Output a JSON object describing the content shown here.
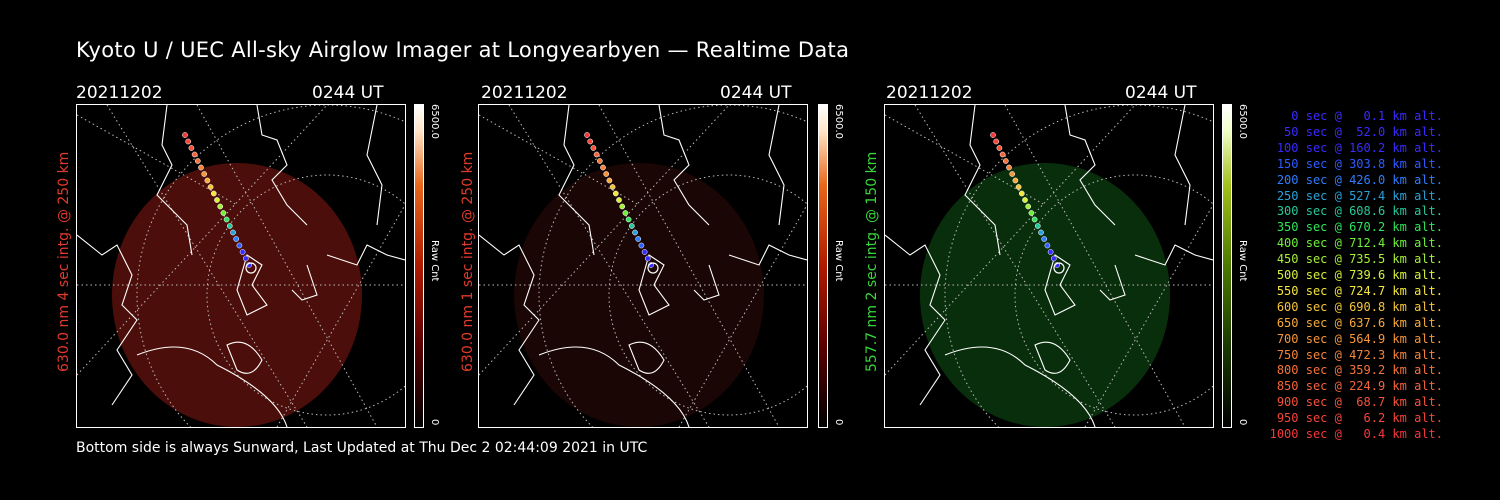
{
  "title": "Kyoto U / UEC All-sky Airglow Imager at Longyearbyen — Realtime Data",
  "footer": "Bottom side is always Sunward, Last Updated at Thu Dec  2 02:44:09 2021 in UTC",
  "panels": [
    {
      "date": "20211202",
      "time": "0244 UT",
      "ylabel": "630.0 nm 4 sec intg. @ 250 km",
      "label_color": "#e23a2a",
      "cbar_max": "6500.0",
      "cbar_min": "0",
      "cbar_label": "Raw Cnt",
      "glow": "#8a1a12",
      "glow_opacity": 0.55
    },
    {
      "date": "20211202",
      "time": "0244 UT",
      "ylabel": "630.0 nm 1 sec intg. @ 250 km",
      "label_color": "#e23a2a",
      "cbar_max": "6500.0",
      "cbar_min": "0",
      "cbar_label": "Raw Cnt",
      "glow": "#3a0d08",
      "glow_opacity": 0.45
    },
    {
      "date": "20211202",
      "time": "0244 UT",
      "ylabel": "557.7 nm 2 sec intg. @ 150 km",
      "label_color": "#37d63a",
      "cbar_max": "6500.0",
      "cbar_min": "0",
      "cbar_label": "Raw Cnt",
      "glow": "#0f4d14",
      "glow_opacity": 0.6
    }
  ],
  "legend": [
    {
      "text": "0 sec @   0.1 km alt.",
      "color": "#3a2bff"
    },
    {
      "text": "50 sec @  52.0 km alt.",
      "color": "#3a2bff"
    },
    {
      "text": "100 sec @ 160.2 km alt.",
      "color": "#3a2bff"
    },
    {
      "text": "150 sec @ 303.8 km alt.",
      "color": "#2f5cff"
    },
    {
      "text": "200 sec @ 426.0 km alt.",
      "color": "#2f7dff"
    },
    {
      "text": "250 sec @ 527.4 km alt.",
      "color": "#2aa0d8"
    },
    {
      "text": "300 sec @ 608.6 km alt.",
      "color": "#27c89a"
    },
    {
      "text": "350 sec @ 670.2 km alt.",
      "color": "#2ee55a"
    },
    {
      "text": "400 sec @ 712.4 km alt.",
      "color": "#6ff03a"
    },
    {
      "text": "450 sec @ 735.5 km alt.",
      "color": "#a6f03a"
    },
    {
      "text": "500 sec @ 739.6 km alt.",
      "color": "#d8f03a"
    },
    {
      "text": "550 sec @ 724.7 km alt.",
      "color": "#f4e63a"
    },
    {
      "text": "600 sec @ 690.8 km alt.",
      "color": "#f6c53a"
    },
    {
      "text": "650 sec @ 637.6 km alt.",
      "color": "#f6aa3a"
    },
    {
      "text": "700 sec @ 564.9 km alt.",
      "color": "#f6953a"
    },
    {
      "text": "750 sec @ 472.3 km alt.",
      "color": "#f6843a"
    },
    {
      "text": "800 sec @ 359.2 km alt.",
      "color": "#f6733a"
    },
    {
      "text": "850 sec @ 224.9 km alt.",
      "color": "#f6633a"
    },
    {
      "text": "900 sec @  68.7 km alt.",
      "color": "#f6533a"
    },
    {
      "text": "950 sec @   6.2 km alt.",
      "color": "#f6453a"
    },
    {
      "text": "1000 sec @   0.4 km alt.",
      "color": "#f6383a"
    }
  ]
}
